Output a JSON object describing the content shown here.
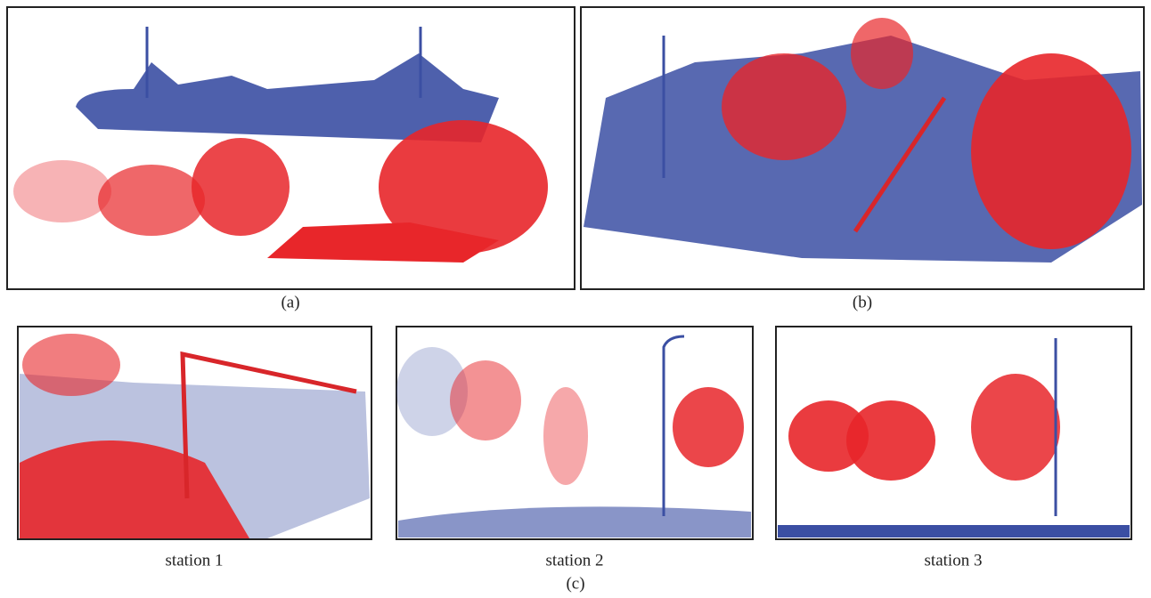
{
  "panels": [
    {
      "label": "(a)"
    },
    {
      "label": "(b)"
    }
  ],
  "stations": [
    {
      "label": "station 1"
    },
    {
      "label": "station 2"
    },
    {
      "label": "station 3"
    }
  ],
  "group_label": "(c)"
}
